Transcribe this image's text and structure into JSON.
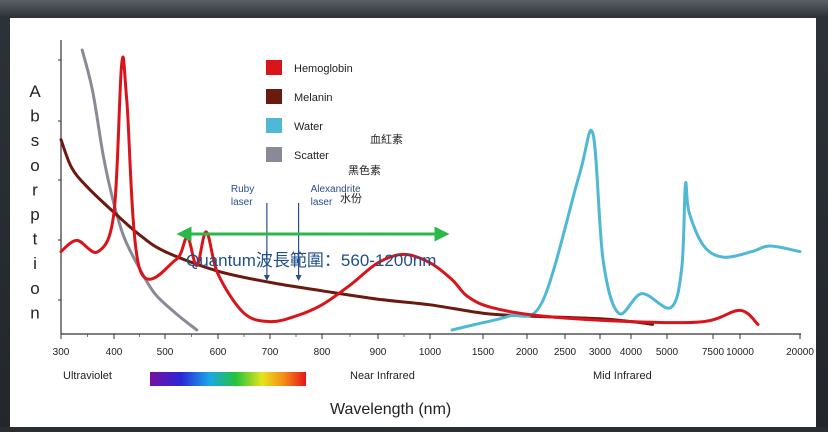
{
  "chart_data": {
    "type": "line",
    "ylabel": "Absorption",
    "xlabel": "Wavelength (nm)",
    "x_axis_scale": "piecewise (300–1000 linear, then 1100–20000 compressed)",
    "x_ticks": [
      "300",
      "400",
      "500",
      "600",
      "700",
      "800",
      "900",
      "1000",
      "1500",
      "2000",
      "2500",
      "3000",
      "4000",
      "5000",
      "7500",
      "10000",
      "20000"
    ],
    "x_regions": [
      "Ultraviolet",
      "Near Infrared",
      "Mid Infrared"
    ],
    "colors": {
      "hemoglobin": "#d9141b",
      "melanin": "#6b1a10",
      "water": "#4fb8d6",
      "scatter": "#8a8a96",
      "range_arrow": "#2bb84a",
      "annotation": "#2b4f8c"
    },
    "legend": [
      {
        "key": "hemoglobin",
        "label": "Hemoglobin"
      },
      {
        "key": "melanin",
        "label": "Melanin"
      },
      {
        "key": "water",
        "label": "Water"
      },
      {
        "key": "scatter",
        "label": "Scatter"
      }
    ],
    "legend_annotations": [
      "血紅素",
      "黑色素",
      "水份"
    ],
    "laser_markers": [
      {
        "label1": "Ruby",
        "label2": "laser",
        "wavelength": 694
      },
      {
        "label1": "Alexandrite",
        "label2": "laser",
        "wavelength": 755
      }
    ],
    "range_label": "Quantum波長範圍：560-1200nm",
    "range_nm": [
      560,
      1200
    ],
    "series": [
      {
        "name": "Hemoglobin",
        "color_key": "hemoglobin",
        "points": [
          [
            300,
            0.28
          ],
          [
            330,
            0.32
          ],
          [
            370,
            0.28
          ],
          [
            400,
            0.42
          ],
          [
            415,
            0.95
          ],
          [
            425,
            0.82
          ],
          [
            450,
            0.22
          ],
          [
            520,
            0.25
          ],
          [
            542,
            0.33
          ],
          [
            560,
            0.23
          ],
          [
            578,
            0.35
          ],
          [
            600,
            0.2
          ],
          [
            650,
            0.06
          ],
          [
            700,
            0.03
          ],
          [
            750,
            0.05
          ],
          [
            800,
            0.09
          ],
          [
            850,
            0.16
          ],
          [
            900,
            0.24
          ],
          [
            950,
            0.27
          ],
          [
            1000,
            0.24
          ],
          [
            1100,
            0.18
          ],
          [
            1300,
            0.12
          ],
          [
            1600,
            0.08
          ],
          [
            2200,
            0.05
          ],
          [
            4000,
            0.03
          ],
          [
            7000,
            0.03
          ],
          [
            10000,
            0.07
          ],
          [
            13000,
            0.02
          ]
        ]
      },
      {
        "name": "Melanin",
        "color_key": "melanin",
        "points": [
          [
            300,
            0.68
          ],
          [
            320,
            0.58
          ],
          [
            350,
            0.51
          ],
          [
            400,
            0.42
          ],
          [
            450,
            0.34
          ],
          [
            500,
            0.28
          ],
          [
            600,
            0.21
          ],
          [
            700,
            0.17
          ],
          [
            800,
            0.14
          ],
          [
            900,
            0.11
          ],
          [
            1000,
            0.09
          ],
          [
            1500,
            0.06
          ],
          [
            2000,
            0.05
          ],
          [
            3000,
            0.04
          ],
          [
            4000,
            0.03
          ],
          [
            4600,
            0.02
          ]
        ]
      },
      {
        "name": "Water",
        "color_key": "water",
        "points": [
          [
            1100,
            0.0
          ],
          [
            1400,
            0.02
          ],
          [
            1800,
            0.05
          ],
          [
            2200,
            0.1
          ],
          [
            2700,
            0.55
          ],
          [
            2900,
            0.7
          ],
          [
            3100,
            0.25
          ],
          [
            3600,
            0.06
          ],
          [
            4300,
            0.13
          ],
          [
            5200,
            0.08
          ],
          [
            5800,
            0.22
          ],
          [
            6000,
            0.52
          ],
          [
            6200,
            0.42
          ],
          [
            7000,
            0.3
          ],
          [
            8500,
            0.26
          ],
          [
            12000,
            0.28
          ],
          [
            15000,
            0.3
          ],
          [
            20000,
            0.28
          ]
        ]
      },
      {
        "name": "Scatter",
        "color_key": "scatter",
        "points": [
          [
            340,
            1.0
          ],
          [
            360,
            0.85
          ],
          [
            380,
            0.62
          ],
          [
            400,
            0.45
          ],
          [
            420,
            0.33
          ],
          [
            450,
            0.22
          ],
          [
            480,
            0.13
          ],
          [
            520,
            0.06
          ],
          [
            560,
            0.0
          ]
        ]
      }
    ]
  }
}
